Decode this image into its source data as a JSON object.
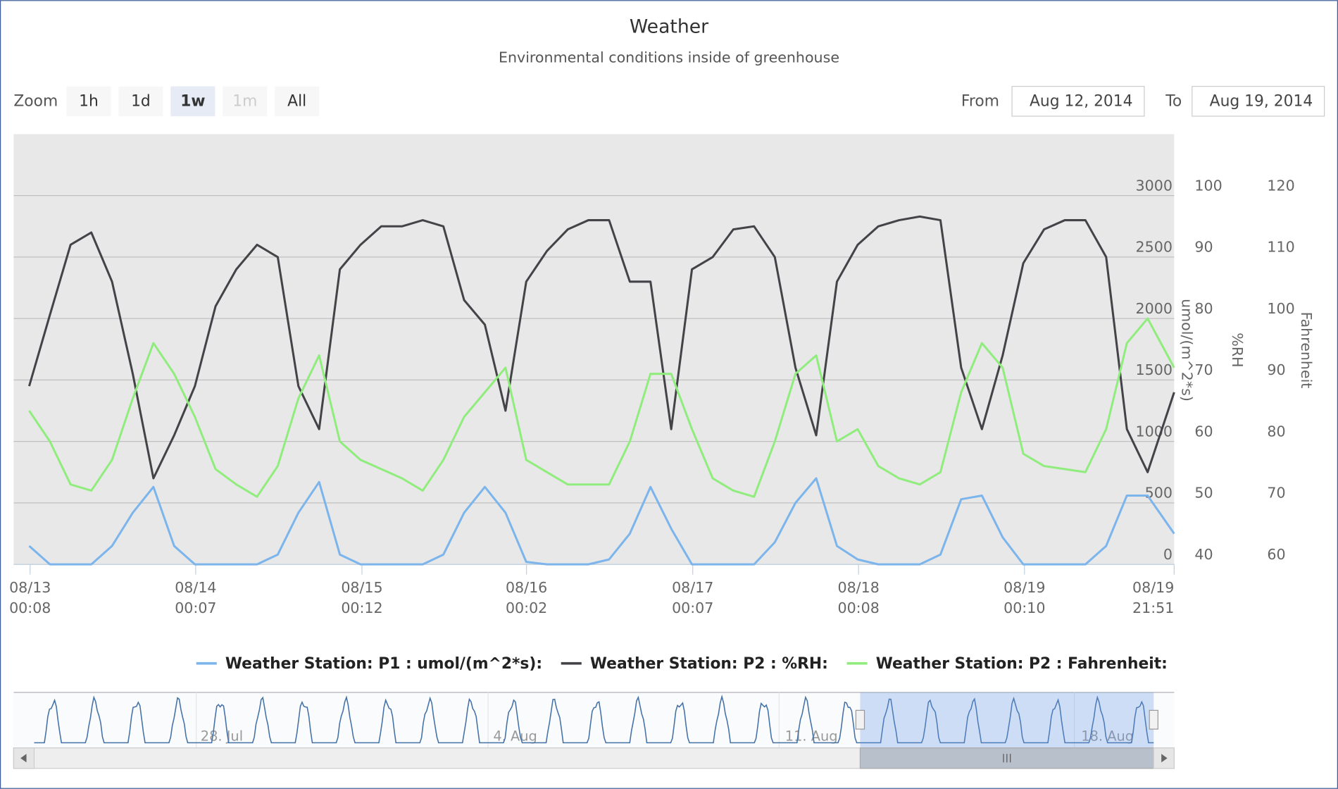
{
  "title": "Weather",
  "subtitle": "Environmental conditions inside of greenhouse",
  "zoom": {
    "label": "Zoom",
    "buttons": [
      "1h",
      "1d",
      "1w",
      "1m",
      "All"
    ],
    "selected": "1w",
    "disabled": [
      "1m"
    ]
  },
  "range": {
    "from_label": "From",
    "from": "Aug 12, 2014",
    "to_label": "To",
    "to": "Aug 19, 2014"
  },
  "chart_data": {
    "type": "line",
    "x": [
      "08/13 00:00",
      "08/13 03:00",
      "08/13 06:00",
      "08/13 09:00",
      "08/13 12:00",
      "08/13 15:00",
      "08/13 18:00",
      "08/13 21:00",
      "08/14 00:00",
      "08/14 03:00",
      "08/14 06:00",
      "08/14 09:00",
      "08/14 12:00",
      "08/14 15:00",
      "08/14 18:00",
      "08/14 21:00",
      "08/15 00:00",
      "08/15 03:00",
      "08/15 06:00",
      "08/15 09:00",
      "08/15 12:00",
      "08/15 15:00",
      "08/15 18:00",
      "08/15 21:00",
      "08/16 00:00",
      "08/16 03:00",
      "08/16 06:00",
      "08/16 09:00",
      "08/16 12:00",
      "08/16 15:00",
      "08/16 18:00",
      "08/16 21:00",
      "08/17 00:00",
      "08/17 03:00",
      "08/17 06:00",
      "08/17 09:00",
      "08/17 12:00",
      "08/17 15:00",
      "08/17 18:00",
      "08/17 21:00",
      "08/18 00:00",
      "08/18 03:00",
      "08/18 06:00",
      "08/18 09:00",
      "08/18 12:00",
      "08/18 15:00",
      "08/18 18:00",
      "08/18 21:00",
      "08/19 00:00",
      "08/19 03:00",
      "08/19 06:00",
      "08/19 09:00",
      "08/19 12:00",
      "08/19 15:00",
      "08/19 18:00",
      "08/19 21:51"
    ],
    "xlim": [
      "08/12 21:45",
      "08/19 21:51"
    ],
    "xticks": [
      "08/13 00:08",
      "08/14 00:07",
      "08/15 00:12",
      "08/16 00:02",
      "08/17 00:07",
      "08/18 00:08",
      "08/19 00:10",
      "08/19 21:51"
    ],
    "ylabel": "umol/(m^2*s)",
    "ylim": [
      0,
      3500
    ],
    "yticks": [
      0,
      500,
      1000,
      1500,
      2000,
      2500,
      3000
    ],
    "y2label": "%RH",
    "y2lim": [
      40,
      110
    ],
    "y2ticks": [
      40,
      50,
      60,
      70,
      80,
      90,
      100
    ],
    "y3label": "Fahrenheit",
    "y3lim": [
      60,
      130
    ],
    "y3ticks": [
      60,
      70,
      80,
      90,
      100,
      110,
      120
    ],
    "grid": true,
    "series": [
      {
        "name": "Weather Station: P1 : umol/(m^2*s):",
        "color": "#7cb5ec",
        "axis": "y",
        "values": [
          150,
          0,
          0,
          0,
          150,
          420,
          630,
          150,
          0,
          0,
          0,
          0,
          80,
          420,
          670,
          80,
          0,
          0,
          0,
          0,
          80,
          420,
          630,
          420,
          20,
          0,
          0,
          0,
          40,
          250,
          630,
          290,
          0,
          0,
          0,
          0,
          180,
          500,
          700,
          150,
          40,
          0,
          0,
          0,
          80,
          530,
          560,
          220,
          0,
          0,
          0,
          0,
          150,
          560,
          560,
          250
        ]
      },
      {
        "name": "Weather Station: P2 : %RH:",
        "color": "#434348",
        "axis": "y2",
        "values": [
          69,
          80.6,
          92,
          94,
          86,
          71,
          54,
          61,
          69,
          82,
          88,
          92,
          90,
          69,
          62,
          88,
          92,
          95,
          95,
          96,
          95,
          83,
          79,
          65,
          86,
          91,
          94.5,
          96,
          96,
          86,
          86,
          62,
          88,
          90,
          94.5,
          95,
          90,
          72,
          61,
          86,
          92,
          95,
          96,
          96.6,
          96,
          72,
          62,
          74,
          89,
          94.5,
          96,
          96,
          90,
          62,
          55,
          68
        ]
      },
      {
        "name": "Weather Station: P2 : Fahrenheit:",
        "color": "#90ed7d",
        "axis": "y3",
        "values": [
          85,
          80,
          73,
          72,
          77,
          87,
          96,
          91,
          84,
          75.5,
          73,
          71,
          76,
          87,
          94,
          80,
          77,
          75.5,
          74,
          72,
          77,
          84,
          88,
          92,
          77,
          75,
          73,
          73,
          73,
          80,
          91,
          91,
          82,
          74,
          72,
          71,
          80,
          91,
          94,
          80,
          82,
          76,
          74,
          73,
          75,
          88,
          96,
          92,
          78,
          76,
          75.5,
          75,
          82,
          96,
          100,
          92
        ]
      }
    ]
  },
  "navigator": {
    "labels": [
      "28. Jul",
      "4. Aug",
      "11. Aug",
      "18. Aug"
    ]
  }
}
